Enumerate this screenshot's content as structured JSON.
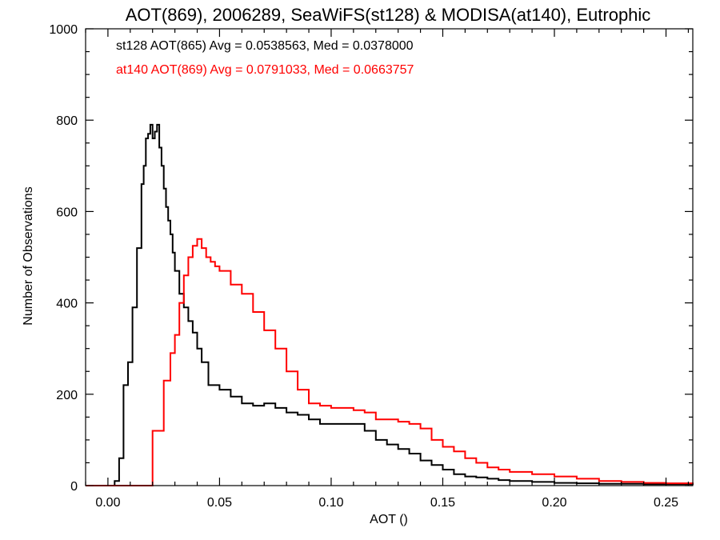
{
  "chart_data": {
    "type": "line",
    "title": "AOT(869), 2006289, SeaWiFS(st128) & MODISA(at140), Eutrophic",
    "xlabel": "AOT ()",
    "ylabel": "Number of Observations",
    "xlim": [
      -0.01,
      0.262
    ],
    "ylim": [
      0,
      1000
    ],
    "x_ticks": [
      0.0,
      0.05,
      0.1,
      0.15,
      0.2,
      0.25
    ],
    "x_tick_labels": [
      "0.00",
      "0.05",
      "0.10",
      "0.15",
      "0.20",
      "0.25"
    ],
    "y_ticks": [
      0,
      200,
      400,
      600,
      800,
      1000
    ],
    "y_tick_labels": [
      "0",
      "200",
      "400",
      "600",
      "800",
      "1000"
    ],
    "grid": false,
    "step": true,
    "annotations": [
      {
        "text": "st128 AOT(865) Avg = 0.0538563, Med = 0.0378000",
        "color": "#000000"
      },
      {
        "text": "at140 AOT(869) Avg = 0.0791033, Med = 0.0663757",
        "color": "#ff0000"
      }
    ],
    "series": [
      {
        "color": "#000000",
        "x": [
          -0.01,
          0.0,
          0.003,
          0.005,
          0.007,
          0.009,
          0.011,
          0.013,
          0.015,
          0.016,
          0.017,
          0.018,
          0.019,
          0.02,
          0.021,
          0.022,
          0.023,
          0.024,
          0.025,
          0.026,
          0.027,
          0.028,
          0.029,
          0.03,
          0.032,
          0.034,
          0.036,
          0.038,
          0.04,
          0.042,
          0.045,
          0.05,
          0.055,
          0.06,
          0.065,
          0.07,
          0.075,
          0.08,
          0.085,
          0.09,
          0.095,
          0.1,
          0.105,
          0.11,
          0.115,
          0.12,
          0.125,
          0.13,
          0.135,
          0.14,
          0.145,
          0.15,
          0.155,
          0.16,
          0.165,
          0.17,
          0.175,
          0.18,
          0.19,
          0.2,
          0.21,
          0.22,
          0.24,
          0.262
        ],
        "values": [
          0,
          0,
          10,
          60,
          220,
          270,
          390,
          520,
          660,
          700,
          760,
          770,
          790,
          760,
          775,
          790,
          740,
          700,
          650,
          610,
          580,
          550,
          510,
          470,
          420,
          390,
          360,
          335,
          300,
          270,
          220,
          210,
          195,
          180,
          175,
          180,
          170,
          160,
          155,
          145,
          135,
          135,
          135,
          135,
          120,
          100,
          90,
          80,
          70,
          55,
          45,
          35,
          25,
          20,
          18,
          15,
          12,
          10,
          8,
          6,
          5,
          4,
          3,
          2
        ]
      },
      {
        "color": "#ff0000",
        "x": [
          -0.01,
          0.02,
          0.025,
          0.028,
          0.03,
          0.032,
          0.034,
          0.036,
          0.038,
          0.04,
          0.042,
          0.044,
          0.046,
          0.048,
          0.05,
          0.055,
          0.06,
          0.065,
          0.07,
          0.075,
          0.08,
          0.085,
          0.09,
          0.095,
          0.1,
          0.105,
          0.11,
          0.115,
          0.12,
          0.125,
          0.13,
          0.135,
          0.14,
          0.145,
          0.15,
          0.155,
          0.16,
          0.165,
          0.17,
          0.175,
          0.18,
          0.19,
          0.2,
          0.21,
          0.22,
          0.23,
          0.24,
          0.25,
          0.262
        ],
        "values": [
          0,
          120,
          230,
          290,
          330,
          400,
          460,
          500,
          525,
          540,
          520,
          500,
          490,
          480,
          470,
          440,
          420,
          380,
          340,
          300,
          250,
          210,
          180,
          175,
          170,
          170,
          165,
          160,
          145,
          145,
          140,
          135,
          125,
          100,
          85,
          75,
          60,
          50,
          40,
          35,
          30,
          25,
          20,
          15,
          10,
          8,
          6,
          5,
          4
        ]
      }
    ]
  }
}
